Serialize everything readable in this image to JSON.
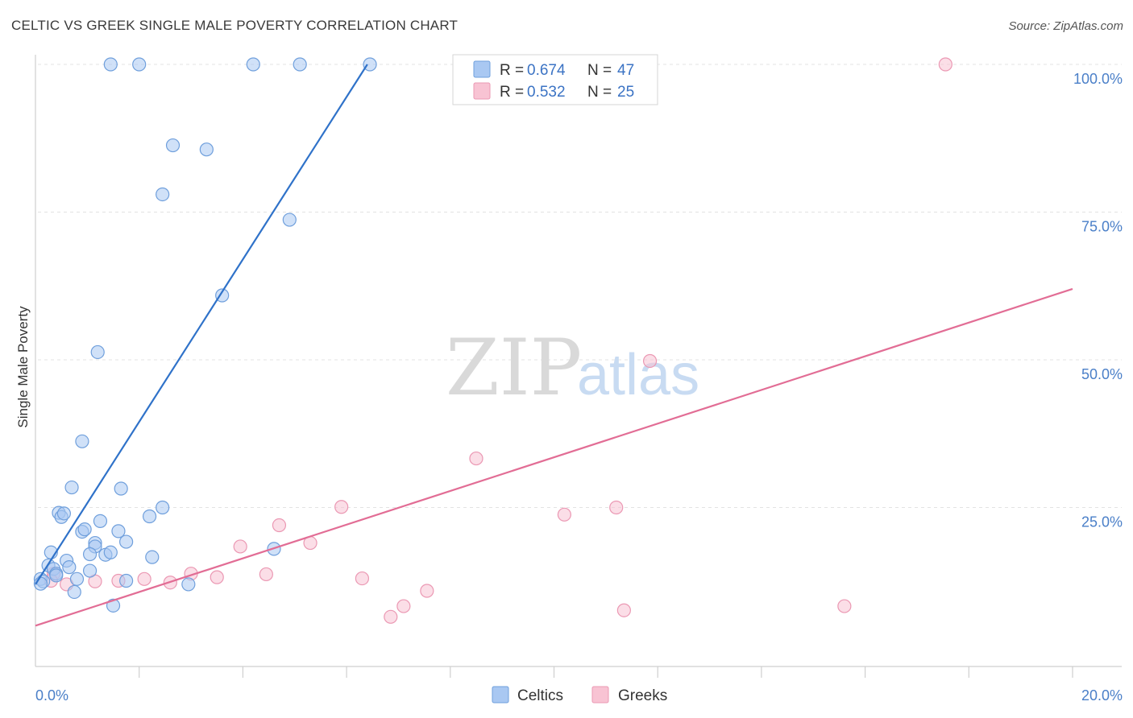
{
  "title": "CELTIC VS GREEK SINGLE MALE POVERTY CORRELATION CHART",
  "source": "Source: ZipAtlas.com",
  "watermark": {
    "zip": "ZIP",
    "atlas": "atlas"
  },
  "legend": {
    "r_label": "R =",
    "n_label": "N =",
    "celtics": {
      "r": "0.674",
      "n": "47"
    },
    "greeks": {
      "r": "0.532",
      "n": "25"
    }
  },
  "colors": {
    "celtics_fill": "#a9c8f2",
    "celtics_stroke": "#6f9fdc",
    "celtics_line": "#2f72c9",
    "greeks_fill": "#f8c3d3",
    "greeks_stroke": "#eb98b3",
    "greeks_line": "#e26d95",
    "tick_text": "#4a7fc8"
  },
  "chart_data": {
    "type": "scatter",
    "title": "CELTIC VS GREEK SINGLE MALE POVERTY CORRELATION CHART",
    "xlabel": "",
    "ylabel": "Single Male Poverty",
    "xlim": [
      0,
      20
    ],
    "ylim": [
      0,
      104
    ],
    "x_tick_labels": [
      "0.0%",
      "20.0%"
    ],
    "y_ticks": [
      25,
      50,
      75,
      100
    ],
    "y_tick_labels": [
      "25.0%",
      "50.0%",
      "75.0%",
      "100.0%"
    ],
    "grid": true,
    "legend_position": "top-center",
    "series": [
      {
        "name": "Celtics",
        "r": 0.674,
        "n": 47,
        "trend": [
          [
            0.0,
            12.0
          ],
          [
            6.4,
            100.0
          ]
        ],
        "points": [
          [
            1.45,
            100
          ],
          [
            2.0,
            100
          ],
          [
            4.2,
            100
          ],
          [
            5.1,
            100
          ],
          [
            6.45,
            100
          ],
          [
            2.65,
            86.3
          ],
          [
            3.3,
            85.6
          ],
          [
            2.45,
            78.0
          ],
          [
            4.9,
            73.7
          ],
          [
            3.6,
            60.9
          ],
          [
            1.2,
            51.3
          ],
          [
            0.9,
            36.2
          ],
          [
            0.7,
            28.4
          ],
          [
            1.65,
            28.2
          ],
          [
            2.45,
            25.0
          ],
          [
            0.45,
            24.1
          ],
          [
            0.5,
            23.4
          ],
          [
            0.55,
            24.0
          ],
          [
            2.2,
            23.5
          ],
          [
            1.25,
            22.7
          ],
          [
            0.9,
            20.9
          ],
          [
            0.95,
            21.3
          ],
          [
            1.6,
            21.0
          ],
          [
            1.75,
            19.2
          ],
          [
            1.15,
            19.0
          ],
          [
            1.15,
            18.4
          ],
          [
            4.6,
            18.0
          ],
          [
            0.3,
            17.4
          ],
          [
            1.05,
            17.1
          ],
          [
            1.35,
            17.0
          ],
          [
            1.45,
            17.4
          ],
          [
            2.25,
            16.6
          ],
          [
            0.6,
            16.0
          ],
          [
            0.25,
            15.2
          ],
          [
            0.65,
            14.9
          ],
          [
            0.35,
            14.6
          ],
          [
            1.05,
            14.3
          ],
          [
            0.4,
            13.8
          ],
          [
            0.4,
            13.5
          ],
          [
            0.8,
            12.9
          ],
          [
            0.1,
            12.9
          ],
          [
            0.15,
            12.5
          ],
          [
            0.1,
            12.1
          ],
          [
            1.75,
            12.6
          ],
          [
            2.95,
            12.0
          ],
          [
            0.75,
            10.7
          ],
          [
            1.5,
            8.4
          ]
        ]
      },
      {
        "name": "Greeks",
        "r": 0.532,
        "n": 25,
        "trend": [
          [
            0.0,
            5.0
          ],
          [
            20.0,
            62.0
          ]
        ],
        "points": [
          [
            17.55,
            100
          ],
          [
            11.85,
            49.8
          ],
          [
            8.5,
            33.3
          ],
          [
            5.9,
            25.1
          ],
          [
            11.2,
            25.0
          ],
          [
            10.2,
            23.8
          ],
          [
            4.7,
            22.0
          ],
          [
            5.3,
            19.0
          ],
          [
            3.95,
            18.4
          ],
          [
            3.0,
            13.8
          ],
          [
            4.45,
            13.7
          ],
          [
            3.5,
            13.2
          ],
          [
            6.3,
            13.0
          ],
          [
            2.1,
            12.9
          ],
          [
            1.6,
            12.6
          ],
          [
            2.6,
            12.3
          ],
          [
            1.15,
            12.5
          ],
          [
            0.35,
            13.8
          ],
          [
            0.3,
            12.6
          ],
          [
            7.55,
            10.9
          ],
          [
            7.1,
            8.3
          ],
          [
            15.6,
            8.3
          ],
          [
            11.35,
            7.6
          ],
          [
            6.85,
            6.5
          ],
          [
            0.6,
            12.0
          ]
        ]
      }
    ]
  }
}
